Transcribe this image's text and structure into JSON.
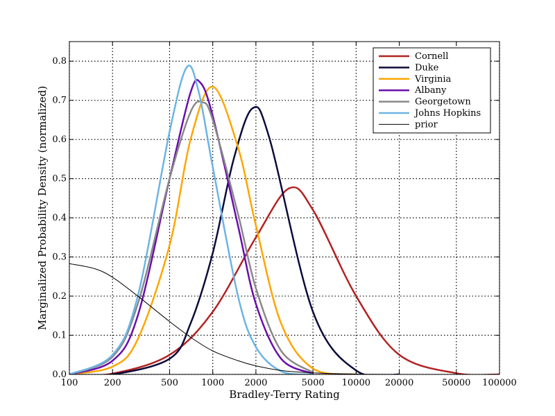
{
  "chart_data": {
    "type": "line",
    "title": "",
    "xlabel": "Bradley-Terry Rating",
    "ylabel": "Marginalized Probability Density (normalized)",
    "x_scale": "log",
    "xlim": [
      100,
      100000
    ],
    "ylim": [
      0,
      0.85
    ],
    "x_ticks": [
      100,
      200,
      500,
      1000,
      2000,
      5000,
      10000,
      20000,
      50000,
      100000
    ],
    "x_tick_labels": [
      "100",
      "200",
      "500",
      "1000",
      "2000",
      "5000",
      "10000",
      "20000",
      "50000",
      "100000"
    ],
    "y_ticks": [
      0.0,
      0.1,
      0.2,
      0.3,
      0.4,
      0.5,
      0.6,
      0.7,
      0.8
    ],
    "y_tick_labels": [
      "0.0",
      "0.1",
      "0.2",
      "0.3",
      "0.4",
      "0.5",
      "0.6",
      "0.7",
      "0.8"
    ],
    "grid": true,
    "legend_position": "top-right",
    "series": [
      {
        "name": "Cornell",
        "color": "#b22222",
        "width": 2.5,
        "x": [
          100,
          200,
          500,
          1000,
          2000,
          3400,
          5000,
          10000,
          20000,
          50000,
          100000
        ],
        "y": [
          0.0,
          0.002,
          0.05,
          0.16,
          0.35,
          0.475,
          0.42,
          0.2,
          0.05,
          0.003,
          0.0
        ]
      },
      {
        "name": "Duke",
        "color": "#0b0b3b",
        "width": 2.5,
        "x": [
          100,
          200,
          500,
          700,
          1000,
          1400,
          1900,
          2500,
          5000,
          10000,
          20000
        ],
        "y": [
          0.0,
          0.0,
          0.04,
          0.13,
          0.31,
          0.55,
          0.68,
          0.6,
          0.16,
          0.01,
          0.0
        ]
      },
      {
        "name": "Virginia",
        "color": "#ffa500",
        "width": 2.5,
        "x": [
          100,
          200,
          300,
          500,
          700,
          1000,
          1500,
          2000,
          3000,
          5000,
          10000
        ],
        "y": [
          0.0,
          0.02,
          0.09,
          0.33,
          0.6,
          0.735,
          0.58,
          0.38,
          0.13,
          0.015,
          0.0
        ]
      },
      {
        "name": "Albany",
        "color": "#6a0dad",
        "width": 2.5,
        "x": [
          100,
          200,
          300,
          500,
          700,
          820,
          1000,
          1500,
          2000,
          3000,
          5000
        ],
        "y": [
          0.0,
          0.035,
          0.15,
          0.5,
          0.72,
          0.745,
          0.66,
          0.38,
          0.18,
          0.04,
          0.002
        ]
      },
      {
        "name": "Georgetown",
        "color": "#888888",
        "width": 2.5,
        "x": [
          100,
          200,
          300,
          500,
          700,
          850,
          1000,
          1500,
          2000,
          3000,
          5000
        ],
        "y": [
          0.0,
          0.045,
          0.18,
          0.5,
          0.67,
          0.695,
          0.65,
          0.41,
          0.22,
          0.06,
          0.005
        ]
      },
      {
        "name": "Johns Hopkins",
        "color": "#6cb4e4",
        "width": 2.5,
        "x": [
          100,
          200,
          300,
          500,
          660,
          800,
          1000,
          1500,
          2000,
          3000,
          5000
        ],
        "y": [
          0.0,
          0.05,
          0.2,
          0.62,
          0.785,
          0.72,
          0.53,
          0.2,
          0.07,
          0.008,
          0.0
        ]
      },
      {
        "name": "prior",
        "color": "#000000",
        "width": 1.0,
        "x": [
          100,
          150,
          200,
          300,
          500,
          700,
          1000,
          1500,
          2000,
          3000,
          5000,
          10000,
          20000,
          50000,
          100000
        ],
        "y": [
          0.283,
          0.27,
          0.248,
          0.2,
          0.135,
          0.095,
          0.06,
          0.035,
          0.022,
          0.01,
          0.004,
          0.0008,
          0.0001,
          0.0,
          0.0
        ]
      }
    ]
  }
}
